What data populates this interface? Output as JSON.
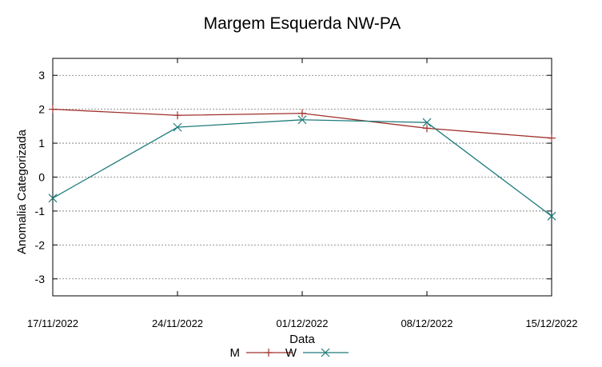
{
  "chart_data": {
    "type": "line",
    "title": "Margem Esquerda NW-PA",
    "xlabel": "Data",
    "ylabel": "Anomalia Categorizada",
    "ylim": [
      -3.5,
      3.5
    ],
    "yticks": [
      3,
      2,
      1,
      0,
      -1,
      -2,
      -3
    ],
    "categories": [
      "17/11/2022",
      "24/11/2022",
      "01/12/2022",
      "08/12/2022",
      "15/12/2022"
    ],
    "grid": true,
    "legend_position": "bottom",
    "series": [
      {
        "name": "M",
        "color": "#a0302b",
        "marker": "plus",
        "values": [
          2.0,
          1.82,
          1.88,
          1.44,
          1.15
        ]
      },
      {
        "name": "W",
        "color": "#1f7b7b",
        "marker": "cross",
        "values": [
          -0.62,
          1.47,
          1.69,
          1.61,
          -1.15
        ]
      }
    ]
  }
}
